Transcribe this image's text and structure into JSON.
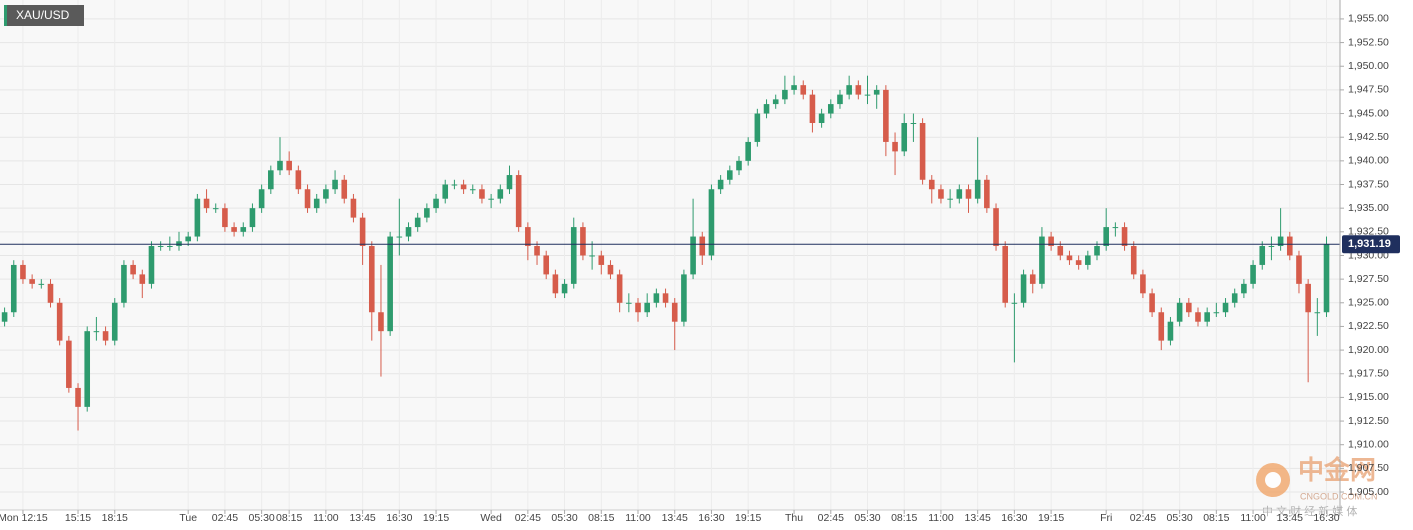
{
  "chart_data": {
    "type": "candlestick",
    "symbol": "XAU/USD",
    "up_color": "#2e9b6e",
    "down_color": "#d65c4b",
    "grid": true,
    "ylim": [
      1903.1,
      1957
    ],
    "yticks": [
      {
        "value": 1905,
        "label": "1,905.00"
      },
      {
        "value": 1907.5,
        "label": "1,907.50"
      },
      {
        "value": 1910,
        "label": "1,910.00"
      },
      {
        "value": 1912.5,
        "label": "1,912.50"
      },
      {
        "value": 1915,
        "label": "1,915.00"
      },
      {
        "value": 1917.5,
        "label": "1,917.50"
      },
      {
        "value": 1920,
        "label": "1,920.00"
      },
      {
        "value": 1922.5,
        "label": "1,922.50"
      },
      {
        "value": 1925,
        "label": "1,925.00"
      },
      {
        "value": 1927.5,
        "label": "1,927.50"
      },
      {
        "value": 1930,
        "label": "1,930.00"
      },
      {
        "value": 1932.5,
        "label": "1,932.50"
      },
      {
        "value": 1935,
        "label": "1,935.00"
      },
      {
        "value": 1937.5,
        "label": "1,937.50"
      },
      {
        "value": 1940,
        "label": "1,940.00"
      },
      {
        "value": 1942.5,
        "label": "1,942.50"
      },
      {
        "value": 1945,
        "label": "1,945.00"
      },
      {
        "value": 1947.5,
        "label": "1,947.50"
      },
      {
        "value": 1950,
        "label": "1,950.00"
      },
      {
        "value": 1952.5,
        "label": "1,952.50"
      },
      {
        "value": 1955,
        "label": "1,955.00"
      }
    ],
    "last_price": {
      "value": 1931.19,
      "label": "1,931.19",
      "color": "#1f2f5e"
    },
    "categories": [
      null,
      null,
      "Mon 12:15",
      null,
      null,
      null,
      null,
      null,
      "15:15",
      null,
      null,
      null,
      "18:15",
      null,
      null,
      null,
      null,
      null,
      null,
      null,
      "Tue",
      null,
      null,
      null,
      "02:45",
      null,
      null,
      null,
      "05:30",
      null,
      null,
      "08:15",
      null,
      null,
      null,
      "11:00",
      null,
      null,
      null,
      "13:45",
      null,
      null,
      null,
      "16:30",
      null,
      null,
      null,
      "19:15",
      null,
      null,
      null,
      null,
      null,
      "Wed",
      null,
      null,
      null,
      "02:45",
      null,
      null,
      null,
      "05:30",
      null,
      null,
      null,
      "08:15",
      null,
      null,
      null,
      "11:00",
      null,
      null,
      null,
      "13:45",
      null,
      null,
      null,
      "16:30",
      null,
      null,
      null,
      "19:15",
      null,
      null,
      null,
      null,
      "Thu",
      null,
      null,
      null,
      "02:45",
      null,
      null,
      null,
      "05:30",
      null,
      null,
      null,
      "08:15",
      null,
      null,
      null,
      "11:00",
      null,
      null,
      null,
      "13:45",
      null,
      null,
      null,
      "16:30",
      null,
      null,
      null,
      "19:15",
      null,
      null,
      null,
      null,
      null,
      "Fri",
      null,
      null,
      null,
      "02:45",
      null,
      null,
      null,
      "05:30",
      null,
      null,
      null,
      "08:15",
      null,
      null,
      null,
      "11:00",
      null,
      null,
      null,
      "13:45",
      null,
      null,
      null,
      "16:30"
    ],
    "open": [
      1923,
      1924,
      1929,
      1927.5,
      1927,
      1927,
      1925,
      1921,
      1916,
      1914,
      1922,
      1922,
      1921,
      1925,
      1929,
      1928,
      1927,
      1931,
      1931,
      1931,
      1931.5,
      1932,
      1936,
      1935,
      1935,
      1933,
      1932.5,
      1933,
      1935,
      1937,
      1939,
      1940,
      1939,
      1937,
      1935,
      1936,
      1937,
      1938,
      1936,
      1934,
      1931,
      1924,
      1922,
      1932,
      1932,
      1933,
      1934,
      1935,
      1936,
      1937.5,
      1937.5,
      1937,
      1937,
      1936,
      1936,
      1937,
      1938.5,
      1933,
      1931,
      1930,
      1928,
      1926,
      1927,
      1933,
      1930,
      1930,
      1929,
      1928,
      1925,
      1925,
      1924,
      1925,
      1926,
      1925,
      1923,
      1928,
      1932,
      1930,
      1937,
      1938,
      1939,
      1940,
      1942,
      1945,
      1946,
      1946.5,
      1947.5,
      1948,
      1947,
      1944,
      1945,
      1946,
      1947,
      1948,
      1947,
      1947,
      1947.5,
      1942,
      1941,
      1944,
      1944,
      1938,
      1937,
      1936,
      1936,
      1937,
      1936,
      1938,
      1935,
      1931,
      1925,
      1925,
      1928,
      1927,
      1932,
      1931,
      1930,
      1929.5,
      1929,
      1930,
      1931,
      1933,
      1933,
      1931,
      1928,
      1926,
      1924,
      1921,
      1923,
      1925,
      1924,
      1923,
      1924,
      1924,
      1925,
      1926,
      1927,
      1929,
      1931,
      1931,
      1932,
      1930,
      1927,
      1924,
      1924
    ],
    "high": [
      1924.5,
      1929.5,
      1929.5,
      1928,
      1927.5,
      1927.5,
      1925.5,
      1921.5,
      1916.5,
      1922.5,
      1923.5,
      1922.5,
      1925.5,
      1929.5,
      1929.5,
      1928.5,
      1931.5,
      1931.5,
      1932,
      1932.5,
      1932.5,
      1936.5,
      1937,
      1935.5,
      1935.5,
      1933.5,
      1933.5,
      1935.5,
      1937.5,
      1939.5,
      1942.5,
      1941,
      1939.5,
      1937.5,
      1936.5,
      1937.5,
      1939,
      1938.5,
      1936.5,
      1934.5,
      1931.5,
      1929,
      1932.5,
      1936,
      1933.5,
      1934.5,
      1935.5,
      1936.5,
      1938,
      1938,
      1938,
      1937.5,
      1937.5,
      1936.5,
      1937.5,
      1939.5,
      1939,
      1933.5,
      1931.5,
      1930.5,
      1928.5,
      1927.5,
      1934,
      1933.5,
      1931.5,
      1930.5,
      1929.5,
      1928.5,
      1926,
      1925.5,
      1926,
      1926.5,
      1926.5,
      1925.5,
      1928.5,
      1936,
      1932.5,
      1937.5,
      1938.5,
      1939.5,
      1940.5,
      1942.5,
      1945.5,
      1946.5,
      1947,
      1949,
      1949,
      1948.5,
      1947.5,
      1945.5,
      1946.5,
      1947.5,
      1949,
      1948.5,
      1949,
      1948,
      1948,
      1943,
      1945,
      1945,
      1944.5,
      1938.5,
      1937.5,
      1937,
      1937.5,
      1937.5,
      1942.5,
      1938.5,
      1935.5,
      1931.5,
      1926,
      1928.5,
      1928.5,
      1933,
      1932.5,
      1931.5,
      1930.5,
      1930,
      1930.5,
      1931.5,
      1935,
      1933.5,
      1933.5,
      1931.5,
      1928.5,
      1926.5,
      1924.5,
      1923.5,
      1925.5,
      1925.5,
      1924.5,
      1924.5,
      1925,
      1925.5,
      1926.5,
      1927.5,
      1929.5,
      1931.5,
      1932,
      1935,
      1932.5,
      1930.5,
      1927.5,
      1925.5,
      1932
    ],
    "low": [
      1922.5,
      1923.5,
      1927,
      1926.5,
      1926.5,
      1924.5,
      1920.5,
      1915.5,
      1911.5,
      1913.5,
      1921,
      1920.5,
      1920.5,
      1924.5,
      1927.5,
      1925.5,
      1926.5,
      1930.5,
      1930.5,
      1930.5,
      1931,
      1931.5,
      1934.5,
      1934.5,
      1932.5,
      1932,
      1932,
      1932.5,
      1934.5,
      1936.5,
      1938.5,
      1938.5,
      1936.5,
      1934.5,
      1934.5,
      1935.5,
      1936.5,
      1935.5,
      1933.5,
      1929,
      1921,
      1917.2,
      1921.5,
      1930,
      1931.5,
      1932.5,
      1933.5,
      1934.5,
      1935.5,
      1937,
      1936.5,
      1936.5,
      1935.5,
      1935,
      1935.5,
      1936.5,
      1932.5,
      1929.5,
      1929,
      1927.5,
      1925.5,
      1925.5,
      1926.5,
      1929.5,
      1928.5,
      1928,
      1927.5,
      1924,
      1924,
      1923,
      1923.5,
      1924.5,
      1924.5,
      1920,
      1922.5,
      1927.5,
      1929,
      1929.5,
      1936.5,
      1937.5,
      1938.5,
      1939.5,
      1941.5,
      1944.5,
      1945.5,
      1946,
      1947,
      1946.5,
      1943,
      1943.5,
      1944.5,
      1945.5,
      1946.5,
      1946.5,
      1946,
      1945.5,
      1940.5,
      1938.5,
      1940.5,
      1942,
      1937.5,
      1935.5,
      1935.5,
      1935,
      1935.5,
      1934.5,
      1935.5,
      1934.5,
      1930.5,
      1924.5,
      1918.7,
      1924.5,
      1926,
      1926.5,
      1930.5,
      1929.5,
      1929,
      1928.5,
      1928.5,
      1929.5,
      1930.5,
      1932,
      1930.5,
      1927.5,
      1925.5,
      1923.5,
      1920,
      1920.5,
      1922.5,
      1923.5,
      1922.5,
      1922.5,
      1923.5,
      1923.5,
      1924.5,
      1925.5,
      1926.5,
      1928.5,
      1929.5,
      1930.5,
      1929.5,
      1926,
      1916.6,
      1921.5,
      1923.5
    ],
    "close": [
      1924,
      1929,
      1927.5,
      1927,
      1927,
      1925,
      1921,
      1916,
      1914,
      1922,
      1922,
      1921,
      1925,
      1929,
      1928,
      1927,
      1931,
      1931,
      1931,
      1931.5,
      1932,
      1936,
      1935,
      1935,
      1933,
      1932.5,
      1933,
      1935,
      1937,
      1939,
      1940,
      1939,
      1937,
      1935,
      1936,
      1937,
      1938,
      1936,
      1934,
      1931,
      1924,
      1922,
      1932,
      1932,
      1933,
      1934,
      1935,
      1936,
      1937.5,
      1937.5,
      1937,
      1937,
      1936,
      1936,
      1937,
      1938.5,
      1933,
      1931,
      1930,
      1928,
      1926,
      1927,
      1933,
      1930,
      1930,
      1929,
      1928,
      1925,
      1925,
      1924,
      1925,
      1926,
      1925,
      1923,
      1928,
      1932,
      1930,
      1937,
      1938,
      1939,
      1940,
      1942,
      1945,
      1946,
      1946.5,
      1947.5,
      1948,
      1947,
      1944,
      1945,
      1946,
      1947,
      1948,
      1947,
      1947,
      1947.5,
      1942,
      1941,
      1944,
      1944,
      1938,
      1937,
      1936,
      1936,
      1937,
      1936,
      1938,
      1935,
      1931,
      1925,
      1925,
      1928,
      1927,
      1932,
      1931,
      1930,
      1929.5,
      1929,
      1930,
      1931,
      1933,
      1933,
      1931,
      1928,
      1926,
      1924,
      1921,
      1923,
      1925,
      1924,
      1923,
      1924,
      1924,
      1925,
      1926,
      1927,
      1929,
      1931,
      1931,
      1932,
      1930,
      1927,
      1924,
      1924,
      1931.19
    ]
  },
  "watermark": {
    "brand": "中金网",
    "site": "CNGOLD.COM.CN",
    "slogan": "中 文 财 经 新 媒 体"
  }
}
